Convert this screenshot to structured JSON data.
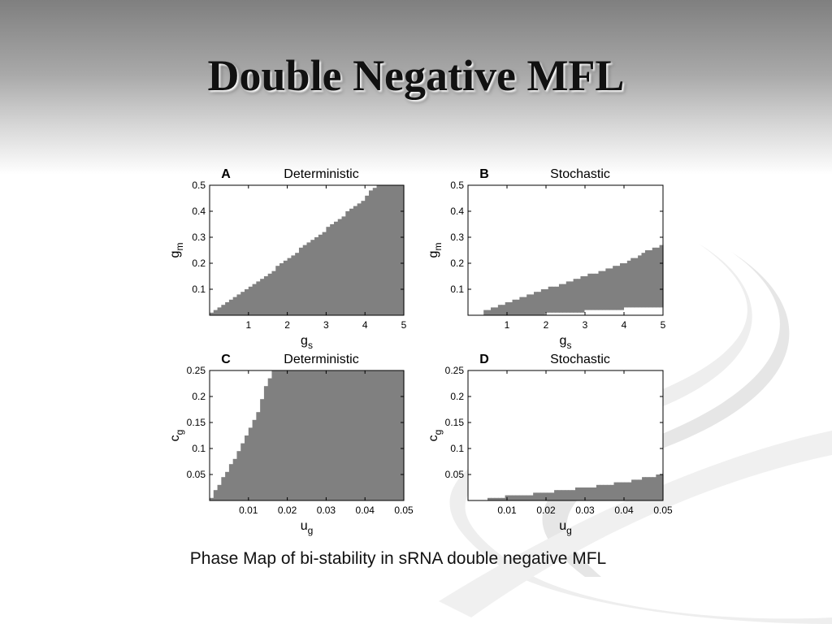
{
  "slide": {
    "title": "Double Negative MFL",
    "caption": "Phase Map of bi-stability in sRNA double negative MFL"
  },
  "colors": {
    "region": "#808080",
    "axis": "#000000",
    "background": "#ffffff"
  },
  "chart_data": [
    {
      "type": "heatmap",
      "panel": "A",
      "title": "Deterministic",
      "xlabel": "g_s",
      "ylabel": "g_m",
      "xlim": [
        0,
        5
      ],
      "ylim": [
        0,
        0.5
      ],
      "xticks": [
        1,
        2,
        3,
        4,
        5
      ],
      "yticks": [
        0.1,
        0.2,
        0.3,
        0.4,
        0.5
      ],
      "region": "bistable region shaded",
      "boundary": [
        [
          0,
          0.0
        ],
        [
          1,
          0.1
        ],
        [
          2,
          0.215
        ],
        [
          3,
          0.33
        ],
        [
          3.5,
          0.39
        ],
        [
          4,
          0.45
        ],
        [
          4.3,
          0.5
        ],
        [
          5,
          0.5
        ]
      ],
      "floor": [
        [
          0,
          0.0
        ],
        [
          2,
          0.0
        ],
        [
          5,
          0.0
        ]
      ]
    },
    {
      "type": "heatmap",
      "panel": "B",
      "title": "Stochastic",
      "xlabel": "g_s",
      "ylabel": "g_m",
      "xlim": [
        0,
        5
      ],
      "ylim": [
        0,
        0.5
      ],
      "xticks": [
        1,
        2,
        3,
        4,
        5
      ],
      "yticks": [
        0.1,
        0.2,
        0.3,
        0.4,
        0.5
      ],
      "region": "bistable region shaded",
      "upper": [
        [
          0.4,
          0.015
        ],
        [
          1,
          0.05
        ],
        [
          2,
          0.1
        ],
        [
          3,
          0.15
        ],
        [
          4,
          0.2
        ],
        [
          4.5,
          0.24
        ],
        [
          5,
          0.27
        ]
      ],
      "lower": [
        [
          0.4,
          0.0
        ],
        [
          1,
          0.0
        ],
        [
          2,
          0.005
        ],
        [
          3,
          0.015
        ],
        [
          4,
          0.025
        ],
        [
          5,
          0.03
        ]
      ]
    },
    {
      "type": "heatmap",
      "panel": "C",
      "title": "Deterministic",
      "xlabel": "u_g",
      "ylabel": "c_g",
      "xlim": [
        0,
        0.05
      ],
      "ylim": [
        0,
        0.25
      ],
      "xticks": [
        0.01,
        0.02,
        0.03,
        0.04,
        0.05
      ],
      "yticks": [
        0.05,
        0.1,
        0.15,
        0.2,
        0.25
      ],
      "region": "bistable region shaded",
      "boundary": [
        [
          0,
          0.0
        ],
        [
          0.004,
          0.05
        ],
        [
          0.008,
          0.1
        ],
        [
          0.012,
          0.16
        ],
        [
          0.015,
          0.23
        ],
        [
          0.0165,
          0.25
        ],
        [
          0.05,
          0.25
        ]
      ],
      "floor": [
        [
          0,
          0.0
        ],
        [
          0.045,
          0.0
        ],
        [
          0.05,
          0.0
        ]
      ]
    },
    {
      "type": "heatmap",
      "panel": "D",
      "title": "Stochastic",
      "xlabel": "u_g",
      "ylabel": "c_g",
      "xlim": [
        0,
        0.05
      ],
      "ylim": [
        0,
        0.25
      ],
      "xticks": [
        0.01,
        0.02,
        0.03,
        0.04,
        0.05
      ],
      "yticks": [
        0.05,
        0.1,
        0.15,
        0.2,
        0.25
      ],
      "region": "bistable region shaded",
      "upper": [
        [
          0.005,
          0.005
        ],
        [
          0.01,
          0.008
        ],
        [
          0.02,
          0.015
        ],
        [
          0.03,
          0.025
        ],
        [
          0.04,
          0.035
        ],
        [
          0.05,
          0.05
        ]
      ],
      "lower": [
        [
          0.005,
          0.0
        ],
        [
          0.05,
          0.0
        ]
      ]
    }
  ]
}
